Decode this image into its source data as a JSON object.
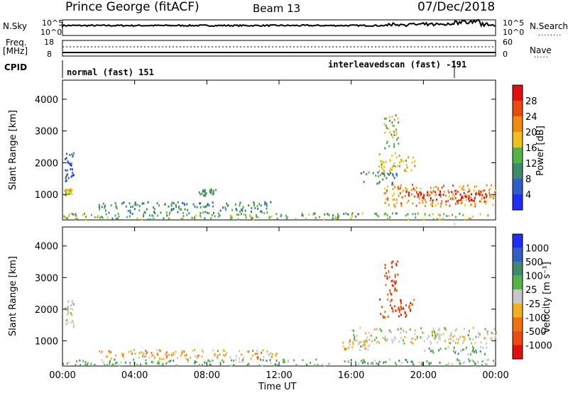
{
  "header": {
    "station": "Prince George (fitACF)",
    "beam": "Beam 13",
    "date": "07/Dec/2018"
  },
  "top_labels": {
    "nsky": "N.Sky",
    "nsearch": "N.Search",
    "freq": "Freq.",
    "freq_unit": "[MHz]",
    "nave": "Nave",
    "cpid": "CPID"
  },
  "cpid": {
    "mode1": "normal (fast) 151",
    "mode2": "interleavedscan (fast) -191",
    "switch_time": "21:55"
  },
  "chart_data": [
    {
      "type": "line",
      "title": "N.Sky / N.Search",
      "left_ticks": [
        "10^5",
        "10^0"
      ],
      "right_ticks": [
        "10^5",
        "10^0"
      ],
      "x_range": [
        "00:00",
        "24:00"
      ]
    },
    {
      "type": "line",
      "title": "Freq. / Nave",
      "left_ticks": [
        "18",
        "8"
      ],
      "right_ticks": [
        "60",
        "0"
      ],
      "x_range": [
        "00:00",
        "24:00"
      ]
    },
    {
      "type": "heatmap",
      "ylabel": "Slant Range [km]",
      "ylim": [
        200,
        4600
      ],
      "yticks": [
        "1000",
        "2000",
        "3000",
        "4000"
      ],
      "colorbar_label": "Power [dB]",
      "colorbar_ticks": [
        "4",
        "8",
        "12",
        "16",
        "20",
        "24",
        "28"
      ],
      "colors": [
        "#1f2ef0",
        "#2f5fc4",
        "#3f8a6a",
        "#55b244",
        "#f0c020",
        "#f08a10",
        "#e84a10",
        "#e01010"
      ],
      "regions": [
        {
          "t0": 0.0,
          "t1": 24.0,
          "r0": 200,
          "r1": 400,
          "level": 3
        },
        {
          "t0": 2.0,
          "t1": 11.5,
          "r0": 400,
          "r1": 750,
          "level": 2
        },
        {
          "t0": 0.1,
          "t1": 0.6,
          "r0": 1400,
          "r1": 2300,
          "level": 1
        },
        {
          "t0": 0.1,
          "t1": 0.5,
          "r0": 950,
          "r1": 1150,
          "level": 4
        },
        {
          "t0": 7.5,
          "t1": 8.5,
          "r0": 950,
          "r1": 1150,
          "level": 2
        },
        {
          "t0": 16.5,
          "t1": 18.5,
          "r0": 1300,
          "r1": 1700,
          "level": 2
        },
        {
          "t0": 17.8,
          "t1": 24.0,
          "r0": 600,
          "r1": 1300,
          "level": 5
        },
        {
          "t0": 19.0,
          "t1": 23.5,
          "r0": 750,
          "r1": 1100,
          "level": 7
        },
        {
          "t0": 17.5,
          "t1": 19.5,
          "r0": 1700,
          "r1": 2300,
          "level": 4
        },
        {
          "t0": 17.8,
          "t1": 18.6,
          "r0": 2400,
          "r1": 3500,
          "level": 3
        }
      ]
    },
    {
      "type": "heatmap",
      "ylabel": "Slant Range [km]",
      "xlabel": "Time UT",
      "ylim": [
        200,
        4600
      ],
      "yticks": [
        "1000",
        "2000",
        "3000",
        "4000"
      ],
      "xticks": [
        "00:00",
        "04:00",
        "08:00",
        "12:00",
        "16:00",
        "20:00",
        "00:00"
      ],
      "colorbar_label": "Velocity [m s⁻¹]",
      "colorbar_ticks": [
        "1000",
        "500",
        "100",
        "25",
        "-25",
        "-100",
        "-500",
        "-1000"
      ],
      "colors": [
        "#1f2ef0",
        "#2f5fc4",
        "#3f8a6a",
        "#55b244",
        "#c8c8c8",
        "#f0b020",
        "#f07010",
        "#e84a10",
        "#e01010"
      ],
      "regions": [
        {
          "t0": 0.0,
          "t1": 24.0,
          "r0": 200,
          "r1": 400,
          "level": 3
        },
        {
          "t0": 2.0,
          "t1": 12.0,
          "r0": 400,
          "r1": 700,
          "level": 5
        },
        {
          "t0": 0.1,
          "t1": 0.6,
          "r0": 1400,
          "r1": 2300,
          "level": 4
        },
        {
          "t0": 16.0,
          "t1": 24.0,
          "r0": 900,
          "r1": 1400,
          "level": 4
        },
        {
          "t0": 17.5,
          "t1": 19.5,
          "r0": 1700,
          "r1": 2300,
          "level": 7
        },
        {
          "t0": 17.8,
          "t1": 18.6,
          "r0": 2400,
          "r1": 3500,
          "level": 7
        },
        {
          "t0": 15.5,
          "t1": 17.0,
          "r0": 700,
          "r1": 1000,
          "level": 5
        },
        {
          "t0": 20.0,
          "t1": 23.5,
          "r0": 550,
          "r1": 800,
          "level": 3
        }
      ]
    }
  ]
}
